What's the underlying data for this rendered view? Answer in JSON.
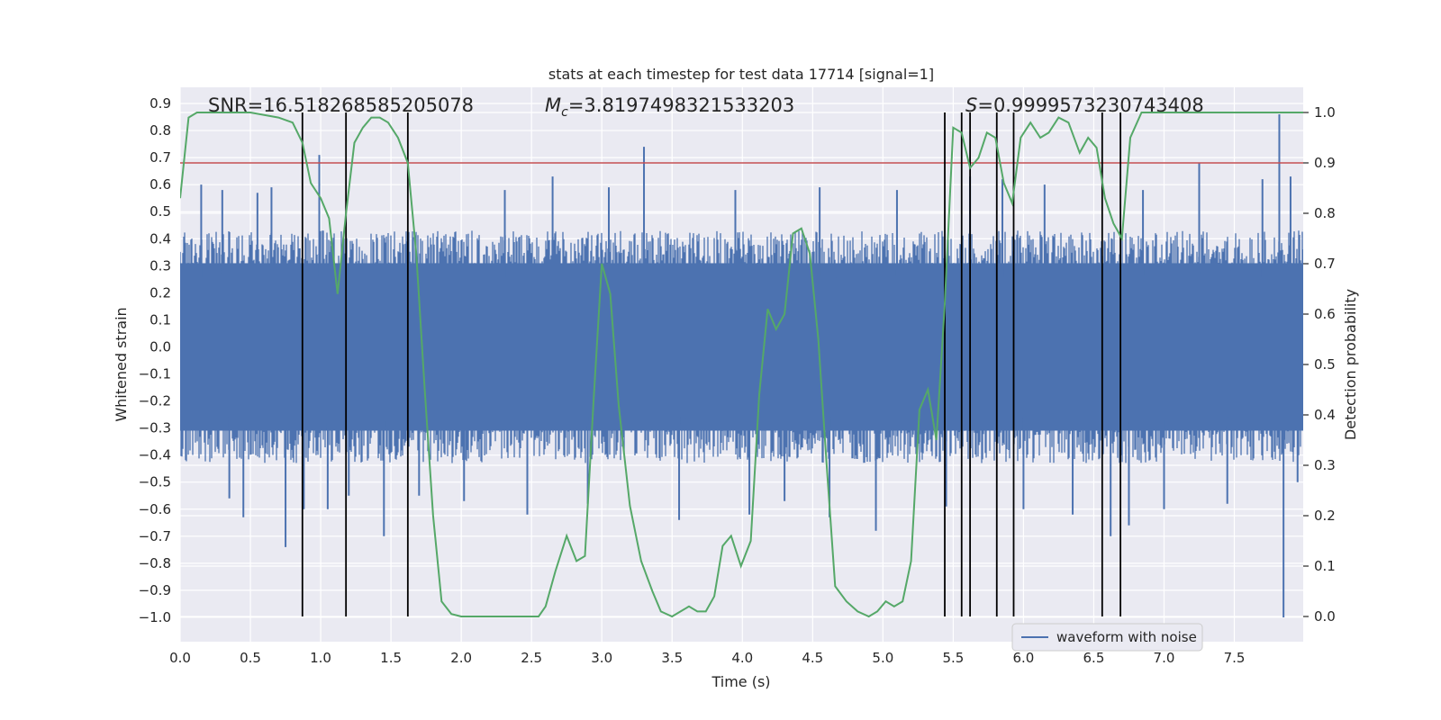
{
  "chart_data": {
    "type": "line",
    "title": "stats at each timestep for test data 17714 [signal=1]",
    "xlabel": "Time (s)",
    "ylabel_left": "Whitened strain",
    "ylabel_right": "Detection probability",
    "xlim": [
      0.0,
      7.99
    ],
    "ylim_left": [
      -1.09,
      0.96
    ],
    "ylim_right": [
      -0.05,
      1.05
    ],
    "x_ticks": [
      "0.0",
      "0.5",
      "1.0",
      "1.5",
      "2.0",
      "2.5",
      "3.0",
      "3.5",
      "4.0",
      "4.5",
      "5.0",
      "5.5",
      "6.0",
      "6.5",
      "7.0",
      "7.5"
    ],
    "y_left_ticks": [
      "0.9",
      "0.8",
      "0.7",
      "0.6",
      "0.5",
      "0.4",
      "0.3",
      "0.2",
      "0.1",
      "0.0",
      "−0.1",
      "−0.2",
      "−0.3",
      "−0.4",
      "−0.5",
      "−0.6",
      "−0.7",
      "−0.8",
      "−0.9",
      "−1.0"
    ],
    "y_right_ticks": [
      "0.0",
      "0.1",
      "0.2",
      "0.3",
      "0.4",
      "0.5",
      "0.6",
      "0.7",
      "0.8",
      "0.9",
      "1.0"
    ],
    "annotations": {
      "snr": "SNR=16.518268585205078",
      "mc_symbol": "M",
      "mc_sub": "c",
      "mc_value": "=3.8197498321533203",
      "s_symbol": "S",
      "s_value": "=0.9999573230743408"
    },
    "legend": "waveform with noise",
    "threshold": 0.9,
    "vlines": [
      0.87,
      1.18,
      1.62,
      5.44,
      5.56,
      5.62,
      5.81,
      5.93,
      6.56,
      6.69
    ],
    "series": [
      {
        "name": "waveform with noise",
        "color": "#4c72b0",
        "noise_band": [
          -0.43,
          0.43
        ],
        "spikes": [
          [
            0.15,
            0.6
          ],
          [
            0.3,
            0.58
          ],
          [
            0.35,
            -0.56
          ],
          [
            0.45,
            -0.63
          ],
          [
            0.55,
            0.57
          ],
          [
            0.65,
            0.59
          ],
          [
            0.75,
            -0.74
          ],
          [
            0.88,
            -0.6
          ],
          [
            0.99,
            0.71
          ],
          [
            1.05,
            -0.6
          ],
          [
            1.2,
            -0.55
          ],
          [
            1.45,
            -0.7
          ],
          [
            1.7,
            -0.55
          ],
          [
            2.02,
            -0.57
          ],
          [
            2.31,
            0.58
          ],
          [
            2.47,
            -0.62
          ],
          [
            2.65,
            0.63
          ],
          [
            2.9,
            -0.58
          ],
          [
            3.05,
            0.59
          ],
          [
            3.3,
            0.74
          ],
          [
            3.55,
            -0.64
          ],
          [
            3.95,
            0.58
          ],
          [
            4.05,
            -0.62
          ],
          [
            4.3,
            -0.57
          ],
          [
            4.55,
            0.59
          ],
          [
            4.62,
            -0.63
          ],
          [
            4.95,
            -0.68
          ],
          [
            5.1,
            0.58
          ],
          [
            5.45,
            -0.59
          ],
          [
            5.62,
            0.63
          ],
          [
            5.85,
            0.62
          ],
          [
            6.0,
            -0.6
          ],
          [
            6.15,
            0.6
          ],
          [
            6.35,
            -0.62
          ],
          [
            6.62,
            -0.7
          ],
          [
            6.75,
            -0.66
          ],
          [
            6.85,
            0.58
          ],
          [
            7.0,
            -0.6
          ],
          [
            7.25,
            0.68
          ],
          [
            7.45,
            -0.58
          ],
          [
            7.7,
            0.62
          ],
          [
            7.82,
            0.86
          ],
          [
            7.85,
            -1.0
          ],
          [
            7.9,
            0.63
          ],
          [
            7.95,
            -0.5
          ]
        ]
      },
      {
        "name": "detection probability",
        "color": "#55a868",
        "points": [
          [
            0.0,
            0.83
          ],
          [
            0.06,
            0.99
          ],
          [
            0.12,
            1.0
          ],
          [
            0.3,
            1.0
          ],
          [
            0.5,
            1.0
          ],
          [
            0.7,
            0.99
          ],
          [
            0.8,
            0.98
          ],
          [
            0.87,
            0.94
          ],
          [
            0.93,
            0.86
          ],
          [
            1.0,
            0.83
          ],
          [
            1.06,
            0.79
          ],
          [
            1.12,
            0.64
          ],
          [
            1.18,
            0.8
          ],
          [
            1.24,
            0.94
          ],
          [
            1.3,
            0.97
          ],
          [
            1.36,
            0.99
          ],
          [
            1.42,
            0.99
          ],
          [
            1.48,
            0.98
          ],
          [
            1.55,
            0.95
          ],
          [
            1.62,
            0.9
          ],
          [
            1.68,
            0.72
          ],
          [
            1.74,
            0.45
          ],
          [
            1.8,
            0.2
          ],
          [
            1.86,
            0.03
          ],
          [
            1.93,
            0.005
          ],
          [
            2.0,
            0.0
          ],
          [
            2.15,
            0.0
          ],
          [
            2.3,
            0.0
          ],
          [
            2.45,
            0.0
          ],
          [
            2.55,
            0.0
          ],
          [
            2.6,
            0.02
          ],
          [
            2.67,
            0.09
          ],
          [
            2.75,
            0.16
          ],
          [
            2.82,
            0.11
          ],
          [
            2.88,
            0.12
          ],
          [
            2.94,
            0.42
          ],
          [
            3.0,
            0.7
          ],
          [
            3.06,
            0.64
          ],
          [
            3.12,
            0.42
          ],
          [
            3.2,
            0.22
          ],
          [
            3.28,
            0.11
          ],
          [
            3.36,
            0.05
          ],
          [
            3.42,
            0.01
          ],
          [
            3.5,
            0.0
          ],
          [
            3.56,
            0.01
          ],
          [
            3.62,
            0.02
          ],
          [
            3.68,
            0.01
          ],
          [
            3.74,
            0.01
          ],
          [
            3.8,
            0.04
          ],
          [
            3.86,
            0.14
          ],
          [
            3.92,
            0.16
          ],
          [
            3.99,
            0.1
          ],
          [
            4.06,
            0.15
          ],
          [
            4.12,
            0.44
          ],
          [
            4.18,
            0.61
          ],
          [
            4.24,
            0.57
          ],
          [
            4.3,
            0.6
          ],
          [
            4.36,
            0.76
          ],
          [
            4.42,
            0.77
          ],
          [
            4.48,
            0.72
          ],
          [
            4.54,
            0.55
          ],
          [
            4.6,
            0.3
          ],
          [
            4.66,
            0.06
          ],
          [
            4.74,
            0.03
          ],
          [
            4.82,
            0.01
          ],
          [
            4.9,
            0.0
          ],
          [
            4.96,
            0.01
          ],
          [
            5.02,
            0.03
          ],
          [
            5.08,
            0.02
          ],
          [
            5.14,
            0.03
          ],
          [
            5.2,
            0.11
          ],
          [
            5.26,
            0.41
          ],
          [
            5.32,
            0.45
          ],
          [
            5.38,
            0.35
          ],
          [
            5.44,
            0.62
          ],
          [
            5.5,
            0.97
          ],
          [
            5.56,
            0.96
          ],
          [
            5.62,
            0.89
          ],
          [
            5.68,
            0.91
          ],
          [
            5.74,
            0.96
          ],
          [
            5.8,
            0.95
          ],
          [
            5.86,
            0.86
          ],
          [
            5.92,
            0.82
          ],
          [
            5.98,
            0.95
          ],
          [
            6.05,
            0.98
          ],
          [
            6.12,
            0.95
          ],
          [
            6.18,
            0.96
          ],
          [
            6.25,
            0.99
          ],
          [
            6.32,
            0.98
          ],
          [
            6.4,
            0.92
          ],
          [
            6.46,
            0.95
          ],
          [
            6.52,
            0.93
          ],
          [
            6.58,
            0.83
          ],
          [
            6.64,
            0.78
          ],
          [
            6.7,
            0.75
          ],
          [
            6.76,
            0.95
          ],
          [
            6.84,
            1.0
          ],
          [
            6.92,
            1.0
          ],
          [
            7.0,
            1.0
          ],
          [
            7.1,
            1.0
          ],
          [
            7.3,
            1.0
          ],
          [
            7.5,
            1.0
          ],
          [
            7.7,
            1.0
          ],
          [
            7.99,
            1.0
          ]
        ]
      }
    ],
    "colors": {
      "plot_bg": "#eaeaf2",
      "grid": "#ffffff",
      "threshold": "#c44e52",
      "vline": "#000000",
      "text": "#262626"
    }
  }
}
